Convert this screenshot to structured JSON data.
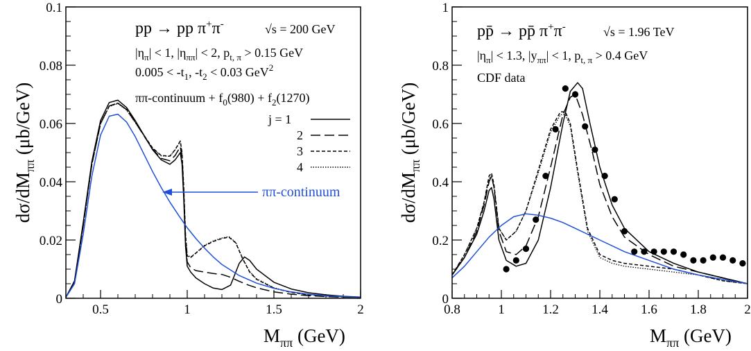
{
  "chart_data": [
    {
      "type": "line",
      "title": "pp → pp π⁺π⁻",
      "energy_label": "√s = 200 GeV",
      "cuts": [
        "|ηπ| < 1,  |ηππ| < 2,  pt, π > 0.15 GeV",
        "0.005 < -t1, -t2 < 0.03 GeV²"
      ],
      "model_label": "ππ-continuum + f0(980) + f2(1270)",
      "xlabel": "Mππ (GeV)",
      "ylabel": "dσ/dMππ (μb/GeV)",
      "xlim": [
        0.3,
        2.0
      ],
      "ylim": [
        0,
        0.1
      ],
      "xticks": [
        "0.5",
        "1",
        "1.5",
        "2"
      ],
      "yticks": [
        "0",
        "0.02",
        "0.04",
        "0.06",
        "0.08",
        "0.1"
      ],
      "legend_position": "right",
      "annotation": "ππ-continuum",
      "series": [
        {
          "name": "j = 1",
          "style": "solid",
          "color": "#000000",
          "x": [
            0.3,
            0.35,
            0.4,
            0.45,
            0.5,
            0.55,
            0.6,
            0.65,
            0.7,
            0.75,
            0.8,
            0.85,
            0.9,
            0.93,
            0.96,
            0.97,
            0.98,
            0.99,
            1.0,
            1.02,
            1.05,
            1.1,
            1.15,
            1.2,
            1.25,
            1.3,
            1.33,
            1.36,
            1.4,
            1.5,
            1.6,
            1.7,
            1.8,
            1.9,
            2.0
          ],
          "y": [
            0.0003,
            0.006,
            0.026,
            0.047,
            0.061,
            0.0672,
            0.068,
            0.0655,
            0.061,
            0.056,
            0.051,
            0.0475,
            0.046,
            0.0475,
            0.05,
            0.046,
            0.034,
            0.018,
            0.011,
            0.009,
            0.007,
            0.005,
            0.0035,
            0.003,
            0.0045,
            0.012,
            0.0142,
            0.013,
            0.01,
            0.0055,
            0.0032,
            0.0019,
            0.0012,
            0.0007,
            0.0004
          ]
        },
        {
          "name": "2",
          "style": "long-dash",
          "color": "#000000",
          "x": [
            0.3,
            0.35,
            0.4,
            0.45,
            0.5,
            0.55,
            0.6,
            0.65,
            0.7,
            0.75,
            0.8,
            0.85,
            0.9,
            0.93,
            0.96,
            0.97,
            0.98,
            0.99,
            1.0,
            1.02,
            1.05,
            1.1,
            1.15,
            1.2,
            1.25,
            1.3,
            1.35,
            1.4,
            1.5,
            1.6,
            1.7,
            1.8,
            1.9,
            2.0
          ],
          "y": [
            0.0003,
            0.0058,
            0.025,
            0.046,
            0.06,
            0.066,
            0.067,
            0.0648,
            0.0605,
            0.0558,
            0.0512,
            0.048,
            0.0472,
            0.049,
            0.052,
            0.048,
            0.036,
            0.02,
            0.0125,
            0.0105,
            0.0095,
            0.009,
            0.0085,
            0.0082,
            0.0072,
            0.0058,
            0.0046,
            0.0036,
            0.0022,
            0.0014,
            0.0009,
            0.0006,
            0.0004,
            0.0003
          ]
        },
        {
          "name": "3",
          "style": "short-dash",
          "color": "#000000",
          "x": [
            0.3,
            0.35,
            0.4,
            0.45,
            0.5,
            0.55,
            0.6,
            0.65,
            0.7,
            0.75,
            0.8,
            0.85,
            0.9,
            0.93,
            0.96,
            0.97,
            0.98,
            0.99,
            1.0,
            1.02,
            1.05,
            1.1,
            1.15,
            1.2,
            1.24,
            1.28,
            1.32,
            1.36,
            1.4,
            1.5,
            1.6,
            1.7,
            1.8,
            1.9,
            2.0
          ],
          "y": [
            0.0003,
            0.0058,
            0.025,
            0.046,
            0.06,
            0.066,
            0.067,
            0.0648,
            0.0605,
            0.056,
            0.0516,
            0.049,
            0.0488,
            0.051,
            0.054,
            0.05,
            0.038,
            0.022,
            0.0145,
            0.014,
            0.0155,
            0.018,
            0.0195,
            0.0205,
            0.021,
            0.019,
            0.0135,
            0.009,
            0.0065,
            0.0035,
            0.002,
            0.0012,
            0.0008,
            0.0005,
            0.0003
          ]
        },
        {
          "name": "4",
          "style": "dotted",
          "color": "#000000",
          "x": [
            0.3,
            0.35,
            0.4,
            0.45,
            0.5,
            0.55,
            0.6,
            0.65,
            0.7,
            0.75,
            0.8,
            0.85,
            0.9,
            0.93,
            0.96,
            0.97,
            0.98,
            0.99,
            1.0,
            1.02,
            1.05,
            1.1,
            1.15,
            1.2,
            1.24,
            1.28,
            1.32,
            1.36,
            1.4,
            1.5,
            1.6,
            1.7,
            1.8,
            1.9,
            2.0
          ],
          "y": [
            0.0003,
            0.0058,
            0.025,
            0.046,
            0.0598,
            0.0658,
            0.0668,
            0.0646,
            0.0603,
            0.0558,
            0.0515,
            0.0489,
            0.0487,
            0.0509,
            0.0538,
            0.0498,
            0.0378,
            0.0222,
            0.0148,
            0.0142,
            0.0156,
            0.0182,
            0.0197,
            0.0207,
            0.0212,
            0.0192,
            0.0137,
            0.0092,
            0.0067,
            0.0036,
            0.0021,
            0.0013,
            0.0008,
            0.0005,
            0.0003
          ]
        },
        {
          "name": "ππ-continuum",
          "style": "solid",
          "color": "#1f4fd8",
          "x": [
            0.3,
            0.35,
            0.4,
            0.45,
            0.5,
            0.55,
            0.6,
            0.65,
            0.7,
            0.75,
            0.8,
            0.85,
            0.9,
            0.95,
            1.0,
            1.05,
            1.1,
            1.15,
            1.2,
            1.3,
            1.4,
            1.5,
            1.6,
            1.7,
            1.8,
            1.9,
            2.0
          ],
          "y": [
            0.0003,
            0.005,
            0.022,
            0.042,
            0.056,
            0.0625,
            0.0632,
            0.0605,
            0.0555,
            0.0495,
            0.0435,
            0.038,
            0.033,
            0.0285,
            0.0242,
            0.0205,
            0.0172,
            0.0142,
            0.0116,
            0.0078,
            0.0052,
            0.0034,
            0.0022,
            0.0014,
            0.0009,
            0.0006,
            0.0004
          ]
        }
      ]
    },
    {
      "type": "line",
      "title": "pp̄ → pp̄ π⁺π⁻",
      "energy_label": "√s = 1.96 TeV",
      "cuts": [
        "|ηπ| < 1.3,   |yππ| < 1,   pt, π > 0.4 GeV"
      ],
      "data_label": "CDF data",
      "xlabel": "Mππ (GeV)",
      "ylabel": "dσ/dMππ (μb/GeV)",
      "xlim": [
        0.8,
        2.0
      ],
      "ylim": [
        0,
        1.0
      ],
      "xticks": [
        "0.8",
        "1",
        "1.2",
        "1.4",
        "1.6",
        "1.8",
        "2"
      ],
      "yticks": [
        "0",
        "0.2",
        "0.4",
        "0.6",
        "0.8",
        "1"
      ],
      "series": [
        {
          "name": "j = 1",
          "style": "solid",
          "color": "#000000",
          "x": [
            0.8,
            0.85,
            0.9,
            0.93,
            0.95,
            0.96,
            0.97,
            0.99,
            1.02,
            1.06,
            1.1,
            1.15,
            1.2,
            1.25,
            1.28,
            1.31,
            1.33,
            1.36,
            1.4,
            1.45,
            1.5,
            1.6,
            1.7,
            1.8,
            1.9,
            2.0
          ],
          "y": [
            0.08,
            0.14,
            0.22,
            0.3,
            0.37,
            0.38,
            0.34,
            0.2,
            0.13,
            0.11,
            0.12,
            0.2,
            0.38,
            0.6,
            0.71,
            0.74,
            0.72,
            0.6,
            0.45,
            0.32,
            0.24,
            0.16,
            0.12,
            0.09,
            0.07,
            0.05
          ]
        },
        {
          "name": "2",
          "style": "long-dash",
          "color": "#000000",
          "x": [
            0.8,
            0.85,
            0.9,
            0.93,
            0.95,
            0.96,
            0.97,
            0.99,
            1.02,
            1.06,
            1.1,
            1.15,
            1.2,
            1.25,
            1.28,
            1.3,
            1.33,
            1.37,
            1.4,
            1.45,
            1.5,
            1.6,
            1.7,
            1.8,
            1.9,
            2.0
          ],
          "y": [
            0.08,
            0.14,
            0.23,
            0.32,
            0.4,
            0.42,
            0.38,
            0.23,
            0.16,
            0.15,
            0.18,
            0.28,
            0.45,
            0.63,
            0.69,
            0.7,
            0.63,
            0.5,
            0.39,
            0.28,
            0.21,
            0.15,
            0.11,
            0.09,
            0.07,
            0.05
          ]
        },
        {
          "name": "3",
          "style": "short-dash",
          "color": "#000000",
          "x": [
            0.8,
            0.85,
            0.9,
            0.93,
            0.95,
            0.96,
            0.97,
            0.99,
            1.02,
            1.06,
            1.1,
            1.15,
            1.2,
            1.24,
            1.26,
            1.28,
            1.31,
            1.35,
            1.4,
            1.45,
            1.5,
            1.6,
            1.7,
            1.8,
            1.9,
            2.0
          ],
          "y": [
            0.08,
            0.15,
            0.24,
            0.33,
            0.42,
            0.43,
            0.39,
            0.24,
            0.2,
            0.23,
            0.3,
            0.44,
            0.58,
            0.64,
            0.64,
            0.6,
            0.44,
            0.24,
            0.15,
            0.13,
            0.12,
            0.11,
            0.1,
            0.08,
            0.06,
            0.05
          ]
        },
        {
          "name": "4",
          "style": "dotted",
          "color": "#000000",
          "x": [
            0.8,
            0.85,
            0.9,
            0.93,
            0.95,
            0.96,
            0.97,
            0.99,
            1.02,
            1.06,
            1.1,
            1.15,
            1.2,
            1.24,
            1.26,
            1.28,
            1.31,
            1.35,
            1.4,
            1.45,
            1.5,
            1.6,
            1.7,
            1.8,
            1.9,
            2.0
          ],
          "y": [
            0.08,
            0.15,
            0.24,
            0.33,
            0.41,
            0.42,
            0.38,
            0.24,
            0.2,
            0.23,
            0.3,
            0.43,
            0.57,
            0.63,
            0.63,
            0.59,
            0.43,
            0.23,
            0.14,
            0.12,
            0.11,
            0.1,
            0.09,
            0.08,
            0.06,
            0.05
          ]
        },
        {
          "name": "ππ-continuum",
          "style": "solid",
          "color": "#1f4fd8",
          "x": [
            0.8,
            0.85,
            0.9,
            0.95,
            1.0,
            1.05,
            1.1,
            1.15,
            1.2,
            1.25,
            1.3,
            1.4,
            1.5,
            1.6,
            1.7,
            1.8,
            1.9,
            2.0
          ],
          "y": [
            0.07,
            0.11,
            0.16,
            0.21,
            0.25,
            0.28,
            0.29,
            0.285,
            0.275,
            0.26,
            0.24,
            0.2,
            0.16,
            0.13,
            0.1,
            0.08,
            0.065,
            0.05
          ]
        },
        {
          "name": "CDF data",
          "style": "points",
          "color": "#000000",
          "x": [
            1.02,
            1.06,
            1.1,
            1.14,
            1.18,
            1.22,
            1.26,
            1.3,
            1.34,
            1.38,
            1.42,
            1.46,
            1.5,
            1.54,
            1.58,
            1.62,
            1.66,
            1.7,
            1.74,
            1.78,
            1.82,
            1.86,
            1.9,
            1.94,
            1.98
          ],
          "y": [
            0.1,
            0.13,
            0.17,
            0.27,
            0.42,
            0.58,
            0.72,
            0.7,
            0.59,
            0.51,
            0.42,
            0.34,
            0.23,
            0.16,
            0.16,
            0.16,
            0.16,
            0.16,
            0.15,
            0.13,
            0.13,
            0.14,
            0.14,
            0.13,
            0.12
          ]
        }
      ]
    }
  ]
}
